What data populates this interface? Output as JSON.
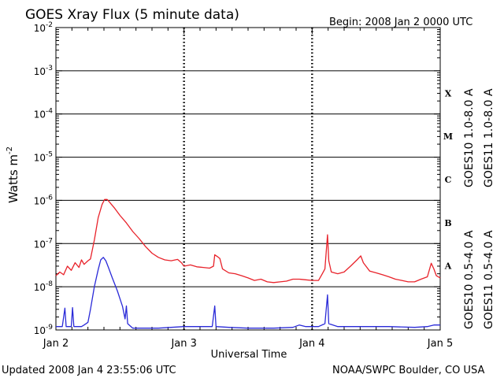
{
  "chart_data": {
    "type": "line",
    "title": "GOES Xray Flux (5 minute data)",
    "begin_label": "Begin:  2008 Jan 2 0000 UTC",
    "xlabel": "Universal Time",
    "ylabel": "Watts m",
    "ylabel_exp": "-2",
    "y_scale": "log",
    "ylim": [
      1e-09,
      0.01
    ],
    "xlim_days": [
      0,
      3
    ],
    "x_ticks": [
      {
        "day": 0,
        "label": "Jan 2"
      },
      {
        "day": 1,
        "label": "Jan 3"
      },
      {
        "day": 2,
        "label": "Jan 4"
      },
      {
        "day": 3,
        "label": "Jan 5"
      }
    ],
    "y_ticks": [
      {
        "exp": -9,
        "base": "10",
        "pow": "-9"
      },
      {
        "exp": -8,
        "base": "10",
        "pow": "-8"
      },
      {
        "exp": -7,
        "base": "10",
        "pow": "-7"
      },
      {
        "exp": -6,
        "base": "10",
        "pow": "-6"
      },
      {
        "exp": -5,
        "base": "10",
        "pow": "-5"
      },
      {
        "exp": -4,
        "base": "10",
        "pow": "-4"
      },
      {
        "exp": -3,
        "base": "10",
        "pow": "-3"
      },
      {
        "exp": -2,
        "base": "10",
        "pow": "-2"
      }
    ],
    "flare_classes": [
      {
        "label": "A",
        "exp": -8
      },
      {
        "label": "B",
        "exp": -7
      },
      {
        "label": "C",
        "exp": -6
      },
      {
        "label": "M",
        "exp": -5
      },
      {
        "label": "X",
        "exp": -4
      }
    ],
    "grid": "horizontal lines at each decade from 1e-8 to 1e-3; dashed vertical lines at day boundaries",
    "legend": [
      {
        "label": "GOES10 1.0-8.0 A",
        "color": "#9933cc"
      },
      {
        "label": "GOES11 1.0-8.0 A",
        "color": "#e8222a"
      },
      {
        "label": "GOES10 0.5-4.0 A",
        "color": "#f0b020"
      },
      {
        "label": "GOES11 0.5-4.0 A",
        "color": "#2a2ad8"
      }
    ],
    "series": [
      {
        "name": "GOES11 1.0-8.0 A",
        "color": "#e8222a",
        "points": [
          [
            0.0,
            1.8e-08
          ],
          [
            0.03,
            2.2e-08
          ],
          [
            0.06,
            1.9e-08
          ],
          [
            0.09,
            3e-08
          ],
          [
            0.12,
            2.4e-08
          ],
          [
            0.15,
            3.6e-08
          ],
          [
            0.18,
            2.8e-08
          ],
          [
            0.2,
            4.2e-08
          ],
          [
            0.22,
            3.3e-08
          ],
          [
            0.25,
            4e-08
          ],
          [
            0.27,
            4.4e-08
          ],
          [
            0.3,
            1.2e-07
          ],
          [
            0.33,
            4e-07
          ],
          [
            0.36,
            8e-07
          ],
          [
            0.38,
            1.05e-06
          ],
          [
            0.4,
            1.05e-06
          ],
          [
            0.42,
            9e-07
          ],
          [
            0.46,
            6.5e-07
          ],
          [
            0.5,
            4.5e-07
          ],
          [
            0.55,
            3e-07
          ],
          [
            0.6,
            1.9e-07
          ],
          [
            0.65,
            1.3e-07
          ],
          [
            0.7,
            8.5e-08
          ],
          [
            0.75,
            6e-08
          ],
          [
            0.8,
            4.8e-08
          ],
          [
            0.85,
            4.2e-08
          ],
          [
            0.9,
            4e-08
          ],
          [
            0.95,
            4.3e-08
          ],
          [
            0.98,
            3.6e-08
          ],
          [
            1.0,
            3e-08
          ],
          [
            1.05,
            3.2e-08
          ],
          [
            1.1,
            2.9e-08
          ],
          [
            1.15,
            2.8e-08
          ],
          [
            1.2,
            2.7e-08
          ],
          [
            1.23,
            3e-08
          ],
          [
            1.24,
            5.5e-08
          ],
          [
            1.26,
            5e-08
          ],
          [
            1.28,
            4.5e-08
          ],
          [
            1.3,
            2.6e-08
          ],
          [
            1.35,
            2.1e-08
          ],
          [
            1.4,
            2e-08
          ],
          [
            1.45,
            1.8e-08
          ],
          [
            1.5,
            1.6e-08
          ],
          [
            1.55,
            1.4e-08
          ],
          [
            1.6,
            1.5e-08
          ],
          [
            1.65,
            1.3e-08
          ],
          [
            1.7,
            1.25e-08
          ],
          [
            1.75,
            1.3e-08
          ],
          [
            1.8,
            1.35e-08
          ],
          [
            1.85,
            1.5e-08
          ],
          [
            1.9,
            1.5e-08
          ],
          [
            1.95,
            1.45e-08
          ],
          [
            2.0,
            1.4e-08
          ],
          [
            2.05,
            1.4e-08
          ],
          [
            2.08,
            2e-08
          ],
          [
            2.1,
            2.6e-08
          ],
          [
            2.12,
            1.6e-07
          ],
          [
            2.13,
            4e-08
          ],
          [
            2.15,
            2.2e-08
          ],
          [
            2.2,
            2e-08
          ],
          [
            2.25,
            2.2e-08
          ],
          [
            2.3,
            3e-08
          ],
          [
            2.35,
            4.2e-08
          ],
          [
            2.38,
            5.2e-08
          ],
          [
            2.4,
            3.6e-08
          ],
          [
            2.42,
            3e-08
          ],
          [
            2.45,
            2.3e-08
          ],
          [
            2.5,
            2.1e-08
          ],
          [
            2.55,
            1.9e-08
          ],
          [
            2.6,
            1.7e-08
          ],
          [
            2.65,
            1.5e-08
          ],
          [
            2.7,
            1.4e-08
          ],
          [
            2.75,
            1.3e-08
          ],
          [
            2.8,
            1.3e-08
          ],
          [
            2.85,
            1.5e-08
          ],
          [
            2.9,
            1.7e-08
          ],
          [
            2.93,
            3.5e-08
          ],
          [
            2.95,
            2.6e-08
          ],
          [
            2.97,
            1.8e-08
          ],
          [
            3.0,
            1.6e-08
          ]
        ]
      },
      {
        "name": "GOES11 0.5-4.0 A",
        "color": "#2a2ad8",
        "points": [
          [
            0.0,
            1.2e-09
          ],
          [
            0.05,
            1.2e-09
          ],
          [
            0.07,
            3.2e-09
          ],
          [
            0.08,
            1.2e-09
          ],
          [
            0.12,
            1.2e-09
          ],
          [
            0.13,
            3.3e-09
          ],
          [
            0.14,
            1.2e-09
          ],
          [
            0.2,
            1.2e-09
          ],
          [
            0.22,
            1.3e-09
          ],
          [
            0.25,
            1.5e-09
          ],
          [
            0.27,
            3e-09
          ],
          [
            0.3,
            1e-08
          ],
          [
            0.33,
            2.5e-08
          ],
          [
            0.35,
            4.2e-08
          ],
          [
            0.37,
            4.8e-08
          ],
          [
            0.39,
            4e-08
          ],
          [
            0.41,
            2.8e-08
          ],
          [
            0.44,
            1.6e-08
          ],
          [
            0.48,
            8e-09
          ],
          [
            0.52,
            3.5e-09
          ],
          [
            0.54,
            1.8e-09
          ],
          [
            0.55,
            3.6e-09
          ],
          [
            0.56,
            1.4e-09
          ],
          [
            0.6,
            1.1e-09
          ],
          [
            0.7,
            1.1e-09
          ],
          [
            0.8,
            1.1e-09
          ],
          [
            0.9,
            1.15e-09
          ],
          [
            1.0,
            1.2e-09
          ],
          [
            1.1,
            1.2e-09
          ],
          [
            1.22,
            1.2e-09
          ],
          [
            1.24,
            3.6e-09
          ],
          [
            1.25,
            1.2e-09
          ],
          [
            1.35,
            1.15e-09
          ],
          [
            1.5,
            1.1e-09
          ],
          [
            1.7,
            1.1e-09
          ],
          [
            1.85,
            1.15e-09
          ],
          [
            1.9,
            1.3e-09
          ],
          [
            1.95,
            1.2e-09
          ],
          [
            2.05,
            1.2e-09
          ],
          [
            2.1,
            1.4e-09
          ],
          [
            2.12,
            6.5e-09
          ],
          [
            2.13,
            1.4e-09
          ],
          [
            2.2,
            1.2e-09
          ],
          [
            2.4,
            1.2e-09
          ],
          [
            2.6,
            1.2e-09
          ],
          [
            2.8,
            1.15e-09
          ],
          [
            2.9,
            1.2e-09
          ],
          [
            2.95,
            1.3e-09
          ],
          [
            3.0,
            1.3e-09
          ]
        ]
      }
    ]
  },
  "footer": {
    "updated": "Updated 2008 Jan  4 23:55:06 UTC",
    "credit": "NOAA/SWPC Boulder, CO USA"
  }
}
